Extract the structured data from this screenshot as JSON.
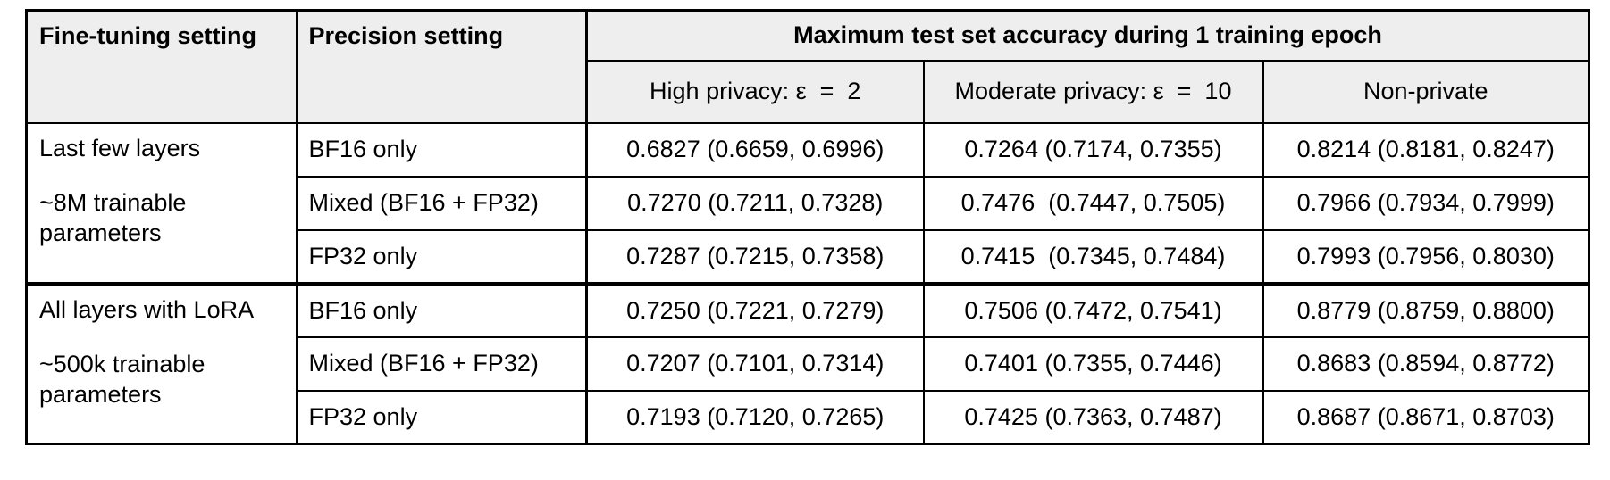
{
  "colors": {
    "page_bg": "#ffffff",
    "header_bg": "#eeeeee",
    "border": "#000000",
    "text": "#000000"
  },
  "table": {
    "columns": {
      "fine_tuning": "Fine-tuning setting",
      "precision": "Precision setting"
    },
    "span_header": "Maximum test set accuracy during 1 training epoch",
    "sub_headers": [
      "High privacy: ε  =  2",
      "Moderate privacy: ε  =  10",
      "Non-private"
    ],
    "groups": [
      {
        "label_line1": "Last few layers",
        "label_line2": "~8M trainable parameters",
        "rows": [
          {
            "precision": "BF16 only",
            "values": [
              "0.6827 (0.6659, 0.6996)",
              "0.7264 (0.7174, 0.7355)",
              "0.8214 (0.8181, 0.8247)"
            ]
          },
          {
            "precision": "Mixed (BF16 + FP32)",
            "values": [
              "0.7270 (0.7211, 0.7328)",
              "0.7476  (0.7447, 0.7505)",
              "0.7966 (0.7934, 0.7999)"
            ]
          },
          {
            "precision": "FP32 only",
            "values": [
              "0.7287 (0.7215, 0.7358)",
              "0.7415  (0.7345, 0.7484)",
              "0.7993 (0.7956, 0.8030)"
            ]
          }
        ]
      },
      {
        "label_line1": "All layers with LoRA",
        "label_line2": "~500k trainable parameters",
        "rows": [
          {
            "precision": "BF16 only",
            "values": [
              "0.7250 (0.7221, 0.7279)",
              "0.7506 (0.7472, 0.7541)",
              "0.8779 (0.8759, 0.8800)"
            ]
          },
          {
            "precision": "Mixed (BF16 + FP32)",
            "values": [
              "0.7207 (0.7101, 0.7314)",
              "0.7401 (0.7355, 0.7446)",
              "0.8683 (0.8594, 0.8772)"
            ]
          },
          {
            "precision": "FP32 only",
            "values": [
              "0.7193 (0.7120, 0.7265)",
              "0.7425 (0.7363, 0.7487)",
              "0.8687 (0.8671, 0.8703)"
            ]
          }
        ]
      }
    ]
  },
  "chart_data": {
    "type": "table",
    "title": "Maximum test set accuracy during 1 training epoch",
    "columns": [
      "Fine-tuning setting",
      "Precision setting",
      "High privacy: ε = 2",
      "Moderate privacy: ε = 10",
      "Non-private"
    ],
    "rows": [
      [
        "Last few layers (~8M trainable parameters)",
        "BF16 only",
        "0.6827 (0.6659, 0.6996)",
        "0.7264 (0.7174, 0.7355)",
        "0.8214 (0.8181, 0.8247)"
      ],
      [
        "Last few layers (~8M trainable parameters)",
        "Mixed (BF16 + FP32)",
        "0.7270 (0.7211, 0.7328)",
        "0.7476 (0.7447, 0.7505)",
        "0.7966 (0.7934, 0.7999)"
      ],
      [
        "Last few layers (~8M trainable parameters)",
        "FP32 only",
        "0.7287 (0.7215, 0.7358)",
        "0.7415 (0.7345, 0.7484)",
        "0.7993 (0.7956, 0.8030)"
      ],
      [
        "All layers with LoRA (~500k trainable parameters)",
        "BF16 only",
        "0.7250 (0.7221, 0.7279)",
        "0.7506 (0.7472, 0.7541)",
        "0.8779 (0.8759, 0.8800)"
      ],
      [
        "All layers with LoRA (~500k trainable parameters)",
        "Mixed (BF16 + FP32)",
        "0.7207 (0.7101, 0.7314)",
        "0.7401 (0.7355, 0.7446)",
        "0.8683 (0.8594, 0.8772)"
      ],
      [
        "All layers with LoRA (~500k trainable parameters)",
        "FP32 only",
        "0.7193 (0.7120, 0.7265)",
        "0.7425 (0.7363, 0.7487)",
        "0.8687 (0.8671, 0.8703)"
      ]
    ]
  }
}
